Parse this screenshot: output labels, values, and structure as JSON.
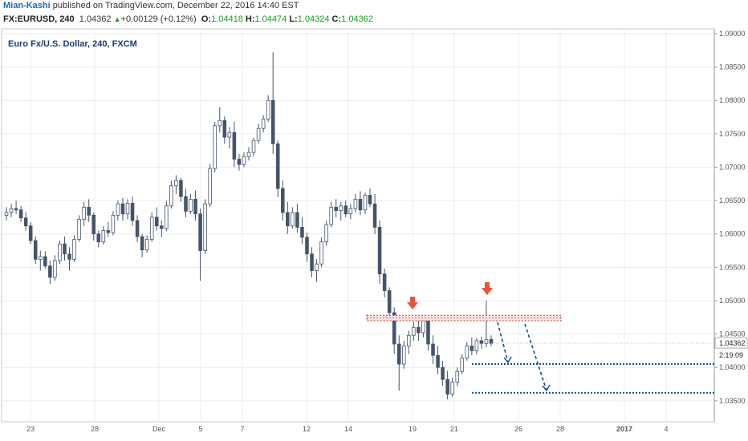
{
  "header": {
    "author": "Mian-Kashi",
    "published": "published on TradingView.com, December 22, 2016 14:40 EST",
    "symbol": "FX:EURUSD, 240",
    "last": "1.04362",
    "change": "+0.00129 (+0.12%)",
    "o_label": "O:",
    "o_value": "1.04418",
    "h_label": "H:",
    "h_value": "1.04474",
    "l_label": "L:",
    "l_value": "1.04324",
    "c_label": "C:",
    "c_value": "1.04362"
  },
  "colors": {
    "accent": "#1e66c5",
    "up": "#1a9e1a",
    "arrow": "#e8553e",
    "dotted_line": "#1a4d8c",
    "resistance_zone": "#c0392b"
  },
  "chart_data": {
    "type": "candlestick",
    "title": "Euro Fx/U.S. Dollar, 240, FXCM",
    "ylim": [
      1.0345,
      1.09
    ],
    "y_ticks": [
      "1.09000",
      "1.08500",
      "1.08000",
      "1.07500",
      "1.07000",
      "1.06500",
      "1.06000",
      "1.05500",
      "1.05000",
      "1.04500",
      "1.04000",
      "1.03500"
    ],
    "x_ticks": [
      "23",
      "28",
      "Dec",
      "5",
      "7",
      "12",
      "14",
      "19",
      "21",
      "26",
      "28",
      "2017",
      "4"
    ],
    "last_price_label": "1.04362",
    "countdown_label": "2:19:09",
    "resistance_zone": [
      1.047,
      1.0478
    ],
    "support_levels": [
      1.0405,
      1.0362
    ],
    "arrow_count": 2,
    "projection_paths": 2,
    "ohlc": [
      [
        1.0628,
        1.064,
        1.062,
        1.0632
      ],
      [
        1.0632,
        1.0645,
        1.0625,
        1.0638
      ],
      [
        1.0638,
        1.065,
        1.063,
        1.0636
      ],
      [
        1.0636,
        1.0642,
        1.0618,
        1.0624
      ],
      [
        1.0624,
        1.0633,
        1.0605,
        1.0612
      ],
      [
        1.0612,
        1.0618,
        1.0585,
        1.059
      ],
      [
        1.059,
        1.0596,
        1.0555,
        1.0562
      ],
      [
        1.0562,
        1.0575,
        1.0545,
        1.0566
      ],
      [
        1.0566,
        1.0574,
        1.0548,
        1.0552
      ],
      [
        1.0552,
        1.056,
        1.0525,
        1.0535
      ],
      [
        1.0535,
        1.0568,
        1.053,
        1.056
      ],
      [
        1.056,
        1.059,
        1.0555,
        1.0585
      ],
      [
        1.0585,
        1.0596,
        1.056,
        1.057
      ],
      [
        1.057,
        1.058,
        1.0545,
        1.0562
      ],
      [
        1.0562,
        1.0598,
        1.0558,
        1.0592
      ],
      [
        1.0592,
        1.0628,
        1.0588,
        1.0622
      ],
      [
        1.0622,
        1.0648,
        1.0612,
        1.064
      ],
      [
        1.064,
        1.0652,
        1.0618,
        1.0628
      ],
      [
        1.0628,
        1.0632,
        1.059,
        1.06
      ],
      [
        1.06,
        1.0605,
        1.058,
        1.0588
      ],
      [
        1.0588,
        1.0612,
        1.0584,
        1.0605
      ],
      [
        1.0605,
        1.0618,
        1.0596,
        1.0602
      ],
      [
        1.0602,
        1.0634,
        1.0598,
        1.0628
      ],
      [
        1.0628,
        1.065,
        1.062,
        1.0645
      ],
      [
        1.0645,
        1.0654,
        1.062,
        1.063
      ],
      [
        1.063,
        1.0652,
        1.0622,
        1.0646
      ],
      [
        1.0646,
        1.0656,
        1.0612,
        1.062
      ],
      [
        1.062,
        1.0628,
        1.0588,
        1.0596
      ],
      [
        1.0596,
        1.06,
        1.0565,
        1.0576
      ],
      [
        1.0576,
        1.0598,
        1.0572,
        1.0592
      ],
      [
        1.0592,
        1.0632,
        1.0588,
        1.0625
      ],
      [
        1.0625,
        1.064,
        1.0605,
        1.0612
      ],
      [
        1.0612,
        1.062,
        1.0595,
        1.0608
      ],
      [
        1.0608,
        1.065,
        1.0604,
        1.0642
      ],
      [
        1.0642,
        1.068,
        1.0638,
        1.0672
      ],
      [
        1.0672,
        1.0688,
        1.066,
        1.068
      ],
      [
        1.068,
        1.0684,
        1.0648,
        1.0656
      ],
      [
        1.0656,
        1.0668,
        1.0625,
        1.0634
      ],
      [
        1.0634,
        1.066,
        1.063,
        1.0652
      ],
      [
        1.0652,
        1.0665,
        1.062,
        1.063
      ],
      [
        1.063,
        1.0638,
        1.053,
        1.0575
      ],
      [
        1.0575,
        1.0652,
        1.057,
        1.0645
      ],
      [
        1.0645,
        1.0705,
        1.064,
        1.0698
      ],
      [
        1.0698,
        1.0768,
        1.0692,
        1.0762
      ],
      [
        1.0762,
        1.079,
        1.0752,
        1.077
      ],
      [
        1.077,
        1.0776,
        1.0735,
        1.0745
      ],
      [
        1.0745,
        1.076,
        1.0728,
        1.0752
      ],
      [
        1.0752,
        1.0768,
        1.07,
        1.0712
      ],
      [
        1.0712,
        1.072,
        1.0695,
        1.0704
      ],
      [
        1.0704,
        1.0722,
        1.07,
        1.0716
      ],
      [
        1.0716,
        1.073,
        1.071,
        1.0722
      ],
      [
        1.0722,
        1.0744,
        1.0716,
        1.074
      ],
      [
        1.074,
        1.0765,
        1.0735,
        1.0758
      ],
      [
        1.0758,
        1.0778,
        1.0752,
        1.0772
      ],
      [
        1.0772,
        1.0808,
        1.0768,
        1.08
      ],
      [
        1.08,
        1.0872,
        1.072,
        1.0735
      ],
      [
        1.0735,
        1.074,
        1.0655,
        1.0668
      ],
      [
        1.0668,
        1.068,
        1.062,
        1.0632
      ],
      [
        1.0632,
        1.0648,
        1.06,
        1.0612
      ],
      [
        1.0612,
        1.064,
        1.0608,
        1.0632
      ],
      [
        1.0632,
        1.0645,
        1.0602,
        1.061
      ],
      [
        1.061,
        1.0625,
        1.0585,
        1.0595
      ],
      [
        1.0595,
        1.0602,
        1.0558,
        1.057
      ],
      [
        1.057,
        1.058,
        1.0535,
        1.0545
      ],
      [
        1.0545,
        1.0562,
        1.0528,
        1.0555
      ],
      [
        1.0555,
        1.0595,
        1.055,
        1.0588
      ],
      [
        1.0588,
        1.062,
        1.0582,
        1.0614
      ],
      [
        1.0614,
        1.0648,
        1.061,
        1.064
      ],
      [
        1.064,
        1.0652,
        1.0625,
        1.0635
      ],
      [
        1.0635,
        1.0648,
        1.062,
        1.0642
      ],
      [
        1.0642,
        1.065,
        1.0625,
        1.063
      ],
      [
        1.063,
        1.0645,
        1.0622,
        1.0638
      ],
      [
        1.0638,
        1.066,
        1.0632,
        1.0652
      ],
      [
        1.0652,
        1.0664,
        1.0628,
        1.0636
      ],
      [
        1.0636,
        1.0662,
        1.063,
        1.0658
      ],
      [
        1.0658,
        1.0668,
        1.064,
        1.0645
      ],
      [
        1.0645,
        1.066,
        1.06,
        1.061
      ],
      [
        1.061,
        1.062,
        1.0525,
        1.054
      ],
      [
        1.054,
        1.0548,
        1.0505,
        1.0515
      ],
      [
        1.0515,
        1.052,
        1.047,
        1.0482
      ],
      [
        1.0482,
        1.049,
        1.042,
        1.0435
      ],
      [
        1.0435,
        1.0448,
        1.0365,
        1.0405
      ],
      [
        1.0405,
        1.044,
        1.0398,
        1.0432
      ],
      [
        1.0432,
        1.0455,
        1.042,
        1.0448
      ],
      [
        1.0448,
        1.0468,
        1.044,
        1.046
      ],
      [
        1.046,
        1.047,
        1.044,
        1.0452
      ],
      [
        1.0452,
        1.0476,
        1.0445,
        1.047
      ],
      [
        1.047,
        1.0476,
        1.0425,
        1.0435
      ],
      [
        1.0435,
        1.0448,
        1.0405,
        1.0418
      ],
      [
        1.0418,
        1.0432,
        1.039,
        1.04
      ],
      [
        1.04,
        1.041,
        1.0372,
        1.0382
      ],
      [
        1.0382,
        1.0395,
        1.0352,
        1.036
      ],
      [
        1.036,
        1.0385,
        1.0356,
        1.0378
      ],
      [
        1.0378,
        1.04,
        1.0372,
        1.0394
      ],
      [
        1.0394,
        1.042,
        1.039,
        1.0414
      ],
      [
        1.0414,
        1.0438,
        1.041,
        1.0432
      ],
      [
        1.0432,
        1.0445,
        1.0418,
        1.0425
      ],
      [
        1.0425,
        1.0444,
        1.042,
        1.044
      ],
      [
        1.044,
        1.0446,
        1.0428,
        1.0436
      ],
      [
        1.0436,
        1.05,
        1.043,
        1.0442
      ],
      [
        1.0442,
        1.0448,
        1.0432,
        1.0436
      ]
    ]
  }
}
